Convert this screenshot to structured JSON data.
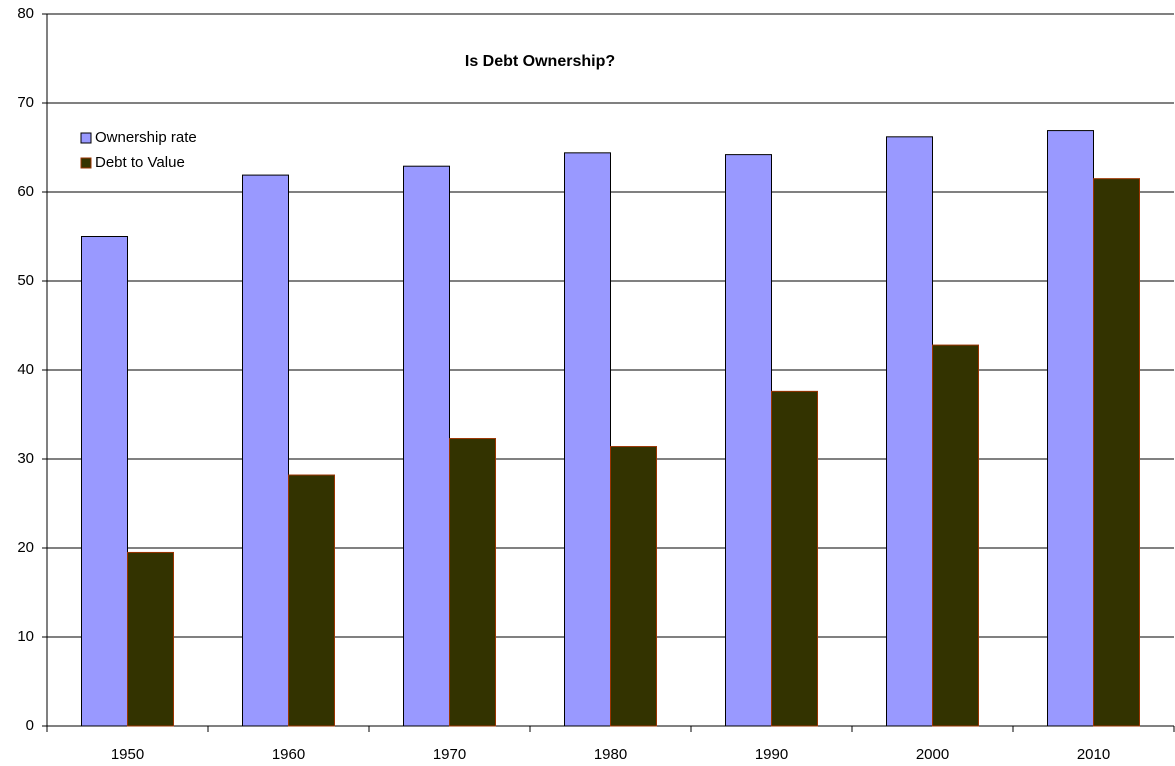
{
  "chart_data": {
    "type": "bar",
    "title": "Is Debt Ownership?",
    "categories": [
      "1950",
      "1960",
      "1970",
      "1980",
      "1990",
      "2000",
      "2010"
    ],
    "series": [
      {
        "name": "Ownership rate",
        "color": "#9999ff",
        "values": [
          55,
          61.9,
          62.9,
          64.4,
          64.2,
          66.2,
          66.9
        ]
      },
      {
        "name": "Debt to Value",
        "color": "#333300",
        "values": [
          19.5,
          28.2,
          32.3,
          31.4,
          37.6,
          42.8,
          61.5
        ]
      }
    ],
    "ylim": [
      0,
      80
    ],
    "yticks": [
      0,
      10,
      20,
      30,
      40,
      50,
      60,
      70,
      80
    ],
    "grid": true,
    "legend": "upper left"
  }
}
